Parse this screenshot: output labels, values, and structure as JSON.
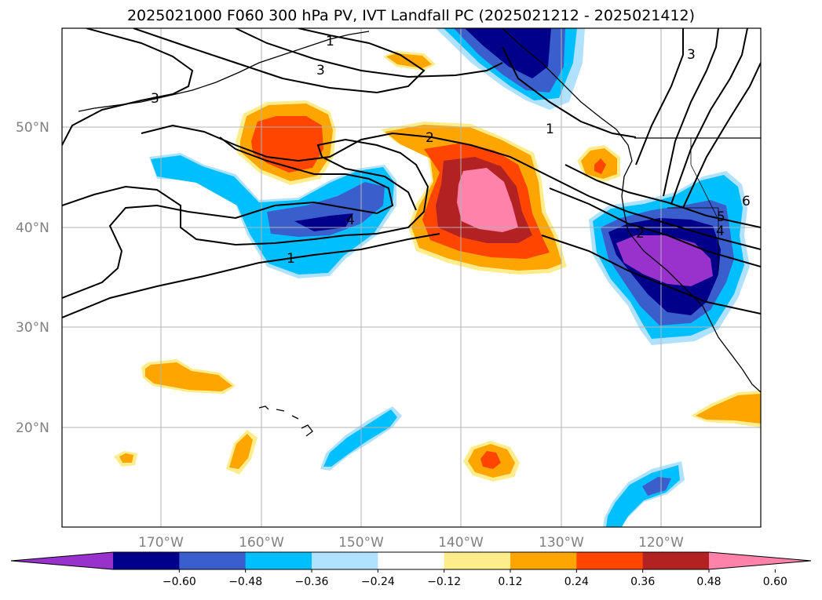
{
  "title": "2025021000 F060 300 hPa PV, IVT Landfall PC (2025021212 - 2025021412)",
  "lat_labels": [
    "50°N",
    "40°N",
    "30°N",
    "20°N"
  ],
  "lon_labels": [
    "170°W",
    "160°W",
    "150°W",
    "140°W",
    "130°W",
    "120°W"
  ],
  "colorbar": {
    "colors": [
      "#9932cc",
      "#00008b",
      "#3a5fcd",
      "#00bfff",
      "#b0e2ff",
      "#ffffff",
      "#ffec8b",
      "#ffa500",
      "#ff4500",
      "#b22222",
      "#ff82ab"
    ],
    "tick_labels": [
      "−0.60",
      "−0.48",
      "−0.36",
      "−0.24",
      "−0.12",
      "0.12",
      "0.24",
      "0.36",
      "0.48",
      "0.60"
    ]
  },
  "contour_labels": [
    "1",
    "3",
    "3",
    "1",
    "2",
    "4",
    "1",
    "2",
    "4",
    "5",
    "6",
    "3"
  ]
}
